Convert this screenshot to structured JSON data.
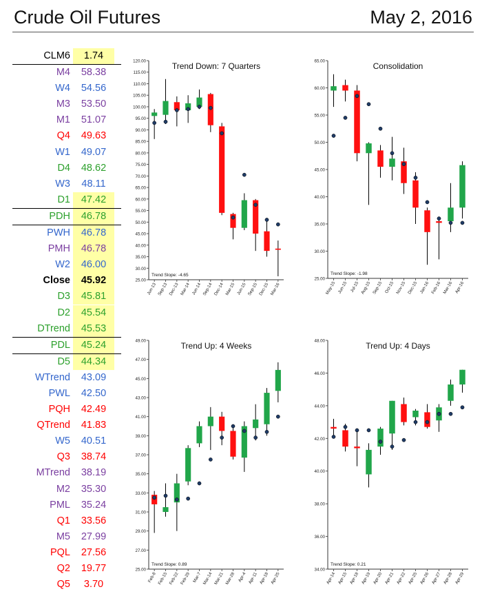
{
  "header": {
    "title": "Crude Oil Futures",
    "date": "May 2, 2016"
  },
  "colors": {
    "up": "#21a64a",
    "down": "#ff1010",
    "green_text": "#2ca02c",
    "red_text": "#ff0000",
    "blue_text": "#3366cc",
    "purple_text": "#7a3ea0",
    "highlight": "#ffffa6"
  },
  "levels": [
    {
      "label": "CLM6",
      "value": "1.74",
      "color": "#000000",
      "hl": true,
      "bold": false,
      "top": false,
      "bottom": false
    },
    {
      "label": "M4",
      "value": "58.38",
      "color": "#7a3ea0",
      "hl": false,
      "bold": false,
      "top": true,
      "bottom": false
    },
    {
      "label": "W4",
      "value": "54.56",
      "color": "#3366cc",
      "hl": false,
      "bold": false,
      "top": false,
      "bottom": false
    },
    {
      "label": "M3",
      "value": "53.50",
      "color": "#7a3ea0",
      "hl": false,
      "bold": false,
      "top": false,
      "bottom": false
    },
    {
      "label": "M1",
      "value": "51.07",
      "color": "#7a3ea0",
      "hl": false,
      "bold": false,
      "top": false,
      "bottom": false
    },
    {
      "label": "Q4",
      "value": "49.63",
      "color": "#ff0000",
      "hl": false,
      "bold": false,
      "top": false,
      "bottom": false
    },
    {
      "label": "W1",
      "value": "49.07",
      "color": "#3366cc",
      "hl": false,
      "bold": false,
      "top": false,
      "bottom": false
    },
    {
      "label": "D4",
      "value": "48.62",
      "color": "#2ca02c",
      "hl": false,
      "bold": false,
      "top": false,
      "bottom": false
    },
    {
      "label": "W3",
      "value": "48.11",
      "color": "#3366cc",
      "hl": false,
      "bold": false,
      "top": false,
      "bottom": false
    },
    {
      "label": "D1",
      "value": "47.42",
      "color": "#2ca02c",
      "hl": true,
      "bold": false,
      "top": false,
      "bottom": false
    },
    {
      "label": "PDH",
      "value": "46.78",
      "color": "#2ca02c",
      "hl": true,
      "bold": false,
      "top": true,
      "bottom": true
    },
    {
      "label": "PWH",
      "value": "46.78",
      "color": "#3366cc",
      "hl": true,
      "bold": false,
      "top": false,
      "bottom": false
    },
    {
      "label": "PMH",
      "value": "46.78",
      "color": "#7a3ea0",
      "hl": true,
      "bold": false,
      "top": false,
      "bottom": false
    },
    {
      "label": "W2",
      "value": "46.00",
      "color": "#3366cc",
      "hl": true,
      "bold": false,
      "top": false,
      "bottom": false
    },
    {
      "label": "Close",
      "value": "45.92",
      "color": "#000000",
      "hl": true,
      "bold": true,
      "top": false,
      "bottom": false
    },
    {
      "label": "D3",
      "value": "45.81",
      "color": "#2ca02c",
      "hl": true,
      "bold": false,
      "top": false,
      "bottom": false
    },
    {
      "label": "D2",
      "value": "45.54",
      "color": "#2ca02c",
      "hl": true,
      "bold": false,
      "top": false,
      "bottom": false
    },
    {
      "label": "DTrend",
      "value": "45.53",
      "color": "#2ca02c",
      "hl": true,
      "bold": false,
      "top": false,
      "bottom": false
    },
    {
      "label": "PDL",
      "value": "45.24",
      "color": "#2ca02c",
      "hl": true,
      "bold": false,
      "top": true,
      "bottom": true
    },
    {
      "label": "D5",
      "value": "44.34",
      "color": "#2ca02c",
      "hl": true,
      "bold": false,
      "top": false,
      "bottom": false
    },
    {
      "label": "WTrend",
      "value": "43.09",
      "color": "#3366cc",
      "hl": false,
      "bold": false,
      "top": false,
      "bottom": false
    },
    {
      "label": "PWL",
      "value": "42.50",
      "color": "#3366cc",
      "hl": false,
      "bold": false,
      "top": false,
      "bottom": false
    },
    {
      "label": "PQH",
      "value": "42.49",
      "color": "#ff0000",
      "hl": false,
      "bold": false,
      "top": false,
      "bottom": false
    },
    {
      "label": "QTrend",
      "value": "41.83",
      "color": "#ff0000",
      "hl": false,
      "bold": false,
      "top": false,
      "bottom": false
    },
    {
      "label": "W5",
      "value": "40.51",
      "color": "#3366cc",
      "hl": false,
      "bold": false,
      "top": false,
      "bottom": false
    },
    {
      "label": "Q3",
      "value": "38.74",
      "color": "#ff0000",
      "hl": false,
      "bold": false,
      "top": false,
      "bottom": false
    },
    {
      "label": "MTrend",
      "value": "38.19",
      "color": "#7a3ea0",
      "hl": false,
      "bold": false,
      "top": false,
      "bottom": false
    },
    {
      "label": "M2",
      "value": "35.30",
      "color": "#7a3ea0",
      "hl": false,
      "bold": false,
      "top": false,
      "bottom": false
    },
    {
      "label": "PML",
      "value": "35.24",
      "color": "#7a3ea0",
      "hl": false,
      "bold": false,
      "top": false,
      "bottom": false
    },
    {
      "label": "Q1",
      "value": "33.56",
      "color": "#ff0000",
      "hl": false,
      "bold": false,
      "top": false,
      "bottom": false
    },
    {
      "label": "M5",
      "value": "27.99",
      "color": "#7a3ea0",
      "hl": false,
      "bold": false,
      "top": false,
      "bottom": false
    },
    {
      "label": "PQL",
      "value": "27.56",
      "color": "#ff0000",
      "hl": false,
      "bold": false,
      "top": false,
      "bottom": false
    },
    {
      "label": "Q2",
      "value": "19.77",
      "color": "#ff0000",
      "hl": false,
      "bold": false,
      "top": false,
      "bottom": false
    },
    {
      "label": "Q5",
      "value": "3.70",
      "color": "#ff0000",
      "hl": false,
      "bold": false,
      "top": false,
      "bottom": false
    }
  ],
  "chart_data": [
    {
      "type": "candlestick",
      "title": "Trend Down: 7 Quarters",
      "slope_label": "Trend Slope: -4.65",
      "ylim": [
        25,
        120
      ],
      "ystep": 5,
      "ydecimals": 2,
      "categories": [
        "Jun-13",
        "Sep-13",
        "Dec-13",
        "Mar-14",
        "Jun-14",
        "Sep-14",
        "Dec-14",
        "Mar-15",
        "Jun-15",
        "Sep-15",
        "Dec-15",
        "Mar-16"
      ],
      "candles": [
        {
          "o": 96.0,
          "h": 99.0,
          "l": 86.0,
          "c": 97.5,
          "dot": 93.0
        },
        {
          "o": 96.5,
          "h": 112.0,
          "l": 92.5,
          "c": 102.5,
          "dot": 93.5
        },
        {
          "o": 102.0,
          "h": 104.5,
          "l": 91.5,
          "c": 98.5,
          "dot": 98.5
        },
        {
          "o": 98.5,
          "h": 105.0,
          "l": 93.0,
          "c": 101.5,
          "dot": 99.0
        },
        {
          "o": 100.0,
          "h": 107.5,
          "l": 99.0,
          "c": 104.0,
          "dot": 100.0
        },
        {
          "o": 105.5,
          "h": 106.0,
          "l": 89.0,
          "c": 92.0,
          "dot": 99.5
        },
        {
          "o": 91.5,
          "h": 93.0,
          "l": 53.0,
          "c": 54.0,
          "dot": 88.5
        },
        {
          "o": 53.5,
          "h": 54.0,
          "l": 42.5,
          "c": 47.5,
          "dot": 52.0
        },
        {
          "o": 47.5,
          "h": 62.5,
          "l": 46.5,
          "c": 59.5,
          "dot": 70.5
        },
        {
          "o": 59.5,
          "h": 60.0,
          "l": 37.5,
          "c": 45.0,
          "dot": 57.5
        },
        {
          "o": 46.0,
          "h": 51.0,
          "l": 35.0,
          "c": 37.5,
          "dot": 51.0
        },
        {
          "o": 38.5,
          "h": 42.0,
          "l": 26.5,
          "c": 38.0,
          "dot": 49.0
        }
      ]
    },
    {
      "type": "candlestick",
      "title": "Consolidation",
      "slope_label": "Trend Slope: -1.98",
      "ylim": [
        25,
        65
      ],
      "ystep": 5,
      "ydecimals": 2,
      "categories": [
        "May-15",
        "Jun-15",
        "Jul-15",
        "Aug-15",
        "Sep-15",
        "Oct-15",
        "Nov-15",
        "Dec-15",
        "Jan-16",
        "Feb-16",
        "Mar-16",
        "Apr-16"
      ],
      "candles": [
        {
          "o": 59.5,
          "h": 62.5,
          "l": 56.5,
          "c": 60.3,
          "dot": 51.2
        },
        {
          "o": 60.5,
          "h": 61.5,
          "l": 57.5,
          "c": 59.5,
          "dot": 54.5
        },
        {
          "o": 59.5,
          "h": 60.5,
          "l": 46.5,
          "c": 48.0,
          "dot": 58.5
        },
        {
          "o": 48.0,
          "h": 50.0,
          "l": 38.5,
          "c": 49.8,
          "dot": 57.0
        },
        {
          "o": 48.5,
          "h": 49.5,
          "l": 43.5,
          "c": 45.5,
          "dot": 52.5
        },
        {
          "o": 45.5,
          "h": 51.0,
          "l": 43.0,
          "c": 47.0,
          "dot": 48.0
        },
        {
          "o": 46.5,
          "h": 49.0,
          "l": 40.5,
          "c": 42.5,
          "dot": 46.0
        },
        {
          "o": 43.0,
          "h": 44.5,
          "l": 35.0,
          "c": 38.0,
          "dot": 43.5
        },
        {
          "o": 37.5,
          "h": 38.0,
          "l": 27.5,
          "c": 33.5,
          "dot": 39.0
        },
        {
          "o": 35.5,
          "h": 35.8,
          "l": 28.5,
          "c": 35.2,
          "dot": 36.0
        },
        {
          "o": 35.5,
          "h": 42.5,
          "l": 33.5,
          "c": 38.0,
          "dot": 35.2
        },
        {
          "o": 38.0,
          "h": 46.5,
          "l": 36.0,
          "c": 45.8,
          "dot": 35.2
        }
      ]
    },
    {
      "type": "candlestick",
      "title": "Trend Up: 4 Weeks",
      "slope_label": "Trend Slope: 0.89",
      "ylim": [
        25,
        49
      ],
      "ystep": 2,
      "ydecimals": 2,
      "categories": [
        "Feb-8",
        "Feb-15",
        "Feb-22",
        "Feb-29",
        "Mar-7",
        "Mar-14",
        "Mar-21",
        "Mar-28",
        "Apr-4",
        "Apr-11",
        "Apr-18",
        "Apr-25"
      ],
      "candles": [
        {
          "o": 32.8,
          "h": 33.2,
          "l": 28.8,
          "c": 31.8,
          "dot": 32.5
        },
        {
          "o": 31.0,
          "h": 34.0,
          "l": 30.5,
          "c": 31.5,
          "dot": 32.7
        },
        {
          "o": 32.0,
          "h": 35.0,
          "l": 29.0,
          "c": 34.0,
          "dot": 32.3
        },
        {
          "o": 34.2,
          "h": 38.0,
          "l": 33.8,
          "c": 37.7,
          "dot": 32.4
        },
        {
          "o": 38.2,
          "h": 40.5,
          "l": 37.8,
          "c": 40.0,
          "dot": 34.0
        },
        {
          "o": 40.0,
          "h": 42.0,
          "l": 37.5,
          "c": 41.0,
          "dot": 36.5
        },
        {
          "o": 41.0,
          "h": 41.5,
          "l": 38.0,
          "c": 39.5,
          "dot": 38.8
        },
        {
          "o": 39.5,
          "h": 40.0,
          "l": 36.5,
          "c": 36.8,
          "dot": 40.0
        },
        {
          "o": 36.7,
          "h": 40.5,
          "l": 35.2,
          "c": 40.0,
          "dot": 39.5
        },
        {
          "o": 39.8,
          "h": 42.3,
          "l": 38.5,
          "c": 40.7,
          "dot": 38.8
        },
        {
          "o": 40.2,
          "h": 44.0,
          "l": 39.0,
          "c": 43.5,
          "dot": 39.4
        },
        {
          "o": 43.7,
          "h": 46.7,
          "l": 42.5,
          "c": 45.9,
          "dot": 41.0
        }
      ]
    },
    {
      "type": "candlestick",
      "title": "Trend Up: 4 Days",
      "slope_label": "Trend Slope: 0.21",
      "ylim": [
        34,
        48
      ],
      "ystep": 2,
      "ydecimals": 2,
      "categories": [
        "Apr-14",
        "Apr-15",
        "Apr-18",
        "Apr-19",
        "Apr-20",
        "Apr-21",
        "Apr-22",
        "Apr-25",
        "Apr-26",
        "Apr-27",
        "Apr-28",
        "Apr-29"
      ],
      "candles": [
        {
          "o": 42.7,
          "h": 43.2,
          "l": 42.0,
          "c": 42.6,
          "dot": 42.1
        },
        {
          "o": 42.5,
          "h": 42.9,
          "l": 41.2,
          "c": 41.5,
          "dot": 42.7
        },
        {
          "o": 41.5,
          "h": 42.5,
          "l": 40.3,
          "c": 41.4,
          "dot": 42.5
        },
        {
          "o": 39.8,
          "h": 41.7,
          "l": 39.0,
          "c": 41.3,
          "dot": 42.5
        },
        {
          "o": 41.5,
          "h": 42.7,
          "l": 41.0,
          "c": 42.6,
          "dot": 41.8
        },
        {
          "o": 42.3,
          "h": 44.3,
          "l": 41.3,
          "c": 44.3,
          "dot": 41.5
        },
        {
          "o": 44.1,
          "h": 44.5,
          "l": 42.8,
          "c": 43.0,
          "dot": 41.9
        },
        {
          "o": 43.3,
          "h": 43.8,
          "l": 42.8,
          "c": 43.7,
          "dot": 43.0
        },
        {
          "o": 43.6,
          "h": 44.1,
          "l": 42.6,
          "c": 42.7,
          "dot": 43.0
        },
        {
          "o": 43.1,
          "h": 44.1,
          "l": 42.4,
          "c": 43.9,
          "dot": 43.5
        },
        {
          "o": 44.3,
          "h": 45.6,
          "l": 44.0,
          "c": 45.3,
          "dot": 43.5
        },
        {
          "o": 45.3,
          "h": 46.2,
          "l": 44.8,
          "c": 46.2,
          "dot": 43.9
        }
      ]
    }
  ]
}
